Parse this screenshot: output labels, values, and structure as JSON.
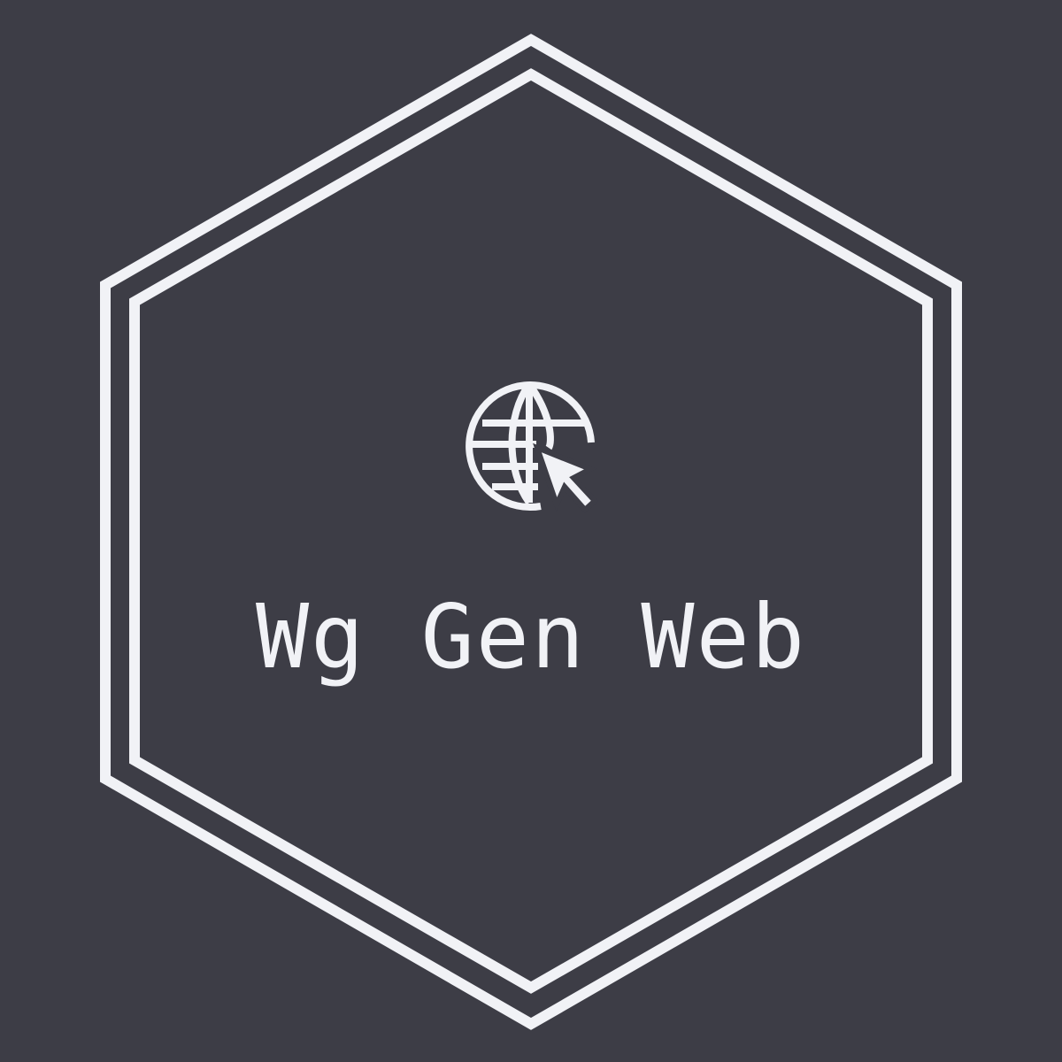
{
  "logo": {
    "brand_name": "Wg Gen Web",
    "icon": "globe-cursor-icon",
    "frame": "double-hexagon-outline"
  },
  "colors": {
    "background": "#3d3d46",
    "foreground": "#f1f2f6"
  }
}
